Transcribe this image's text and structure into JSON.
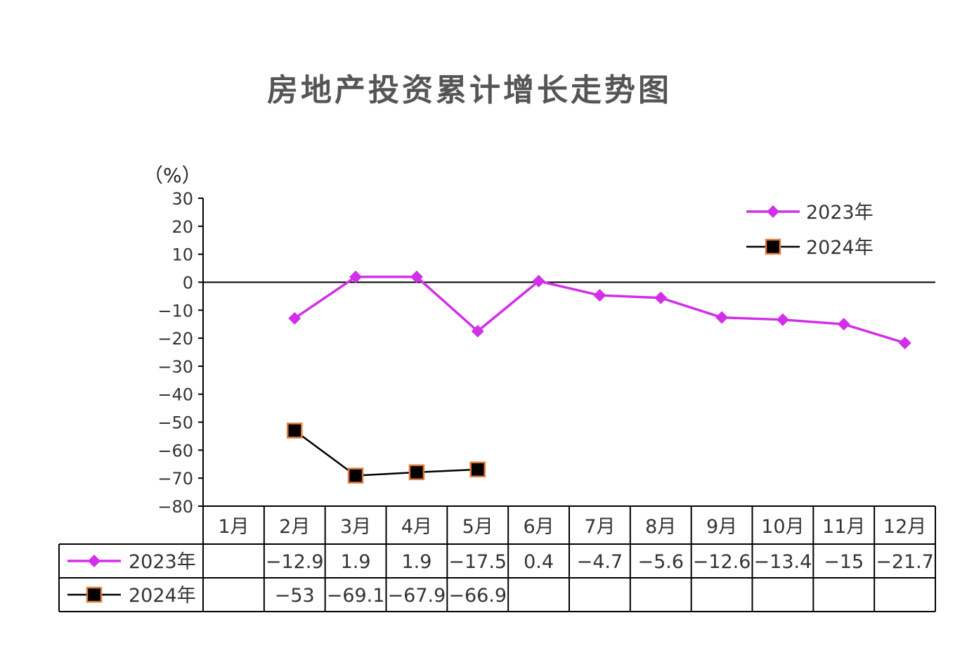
{
  "chart_data": {
    "type": "line",
    "title": "房地产投资累计增长走势图",
    "ylabel": "（%）",
    "ylim": [
      -80,
      30
    ],
    "yticks": [
      30,
      20,
      10,
      0,
      -10,
      -20,
      -30,
      -40,
      -50,
      -60,
      -70,
      -80
    ],
    "ytick_labels": [
      "30",
      "20",
      "10",
      "0",
      "−10",
      "−20",
      "−30",
      "−40",
      "−50",
      "−60",
      "−70",
      "−80"
    ],
    "categories": [
      "1月",
      "2月",
      "3月",
      "4月",
      "5月",
      "6月",
      "7月",
      "8月",
      "9月",
      "10月",
      "11月",
      "12月"
    ],
    "legend_position": "top-right",
    "series": [
      {
        "name": "2023年",
        "color": "#d22fe8",
        "marker": "diamond",
        "values": [
          null,
          -12.9,
          1.9,
          1.9,
          -17.5,
          0.4,
          -4.7,
          -5.6,
          -12.6,
          -13.4,
          -15,
          -21.7
        ],
        "labels": [
          "",
          "−12.9",
          "1.9",
          "1.9",
          "−17.5",
          "0.4",
          "−4.7",
          "−5.6",
          "−12.6",
          "−13.4",
          "−15",
          "−21.7"
        ]
      },
      {
        "name": "2024年",
        "color": "#000000",
        "marker_edge": "#e07b39",
        "marker": "square",
        "values": [
          null,
          -53,
          -69.1,
          -67.9,
          -66.9,
          null,
          null,
          null,
          null,
          null,
          null,
          null
        ],
        "labels": [
          "",
          "−53",
          "−69.1",
          "−67.9",
          "−66.9",
          "",
          "",
          "",
          "",
          "",
          "",
          ""
        ]
      }
    ]
  }
}
